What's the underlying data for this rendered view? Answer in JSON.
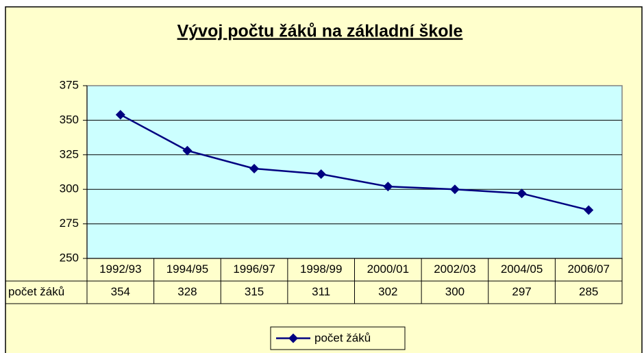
{
  "chart_data": {
    "type": "line",
    "title": "Vývoj počtu žáků na základní škole",
    "categories": [
      "1992/93",
      "1994/95",
      "1996/97",
      "1998/99",
      "2000/01",
      "2002/03",
      "2004/05",
      "2006/07"
    ],
    "series": [
      {
        "name": "počet žáků",
        "color": "#000080",
        "values": [
          354,
          328,
          315,
          311,
          302,
          300,
          297,
          285
        ]
      }
    ],
    "ylim": [
      250,
      375
    ],
    "yticks": [
      250,
      275,
      300,
      325,
      350,
      375
    ],
    "grid": true,
    "legend": "bottom",
    "data_table": true
  }
}
